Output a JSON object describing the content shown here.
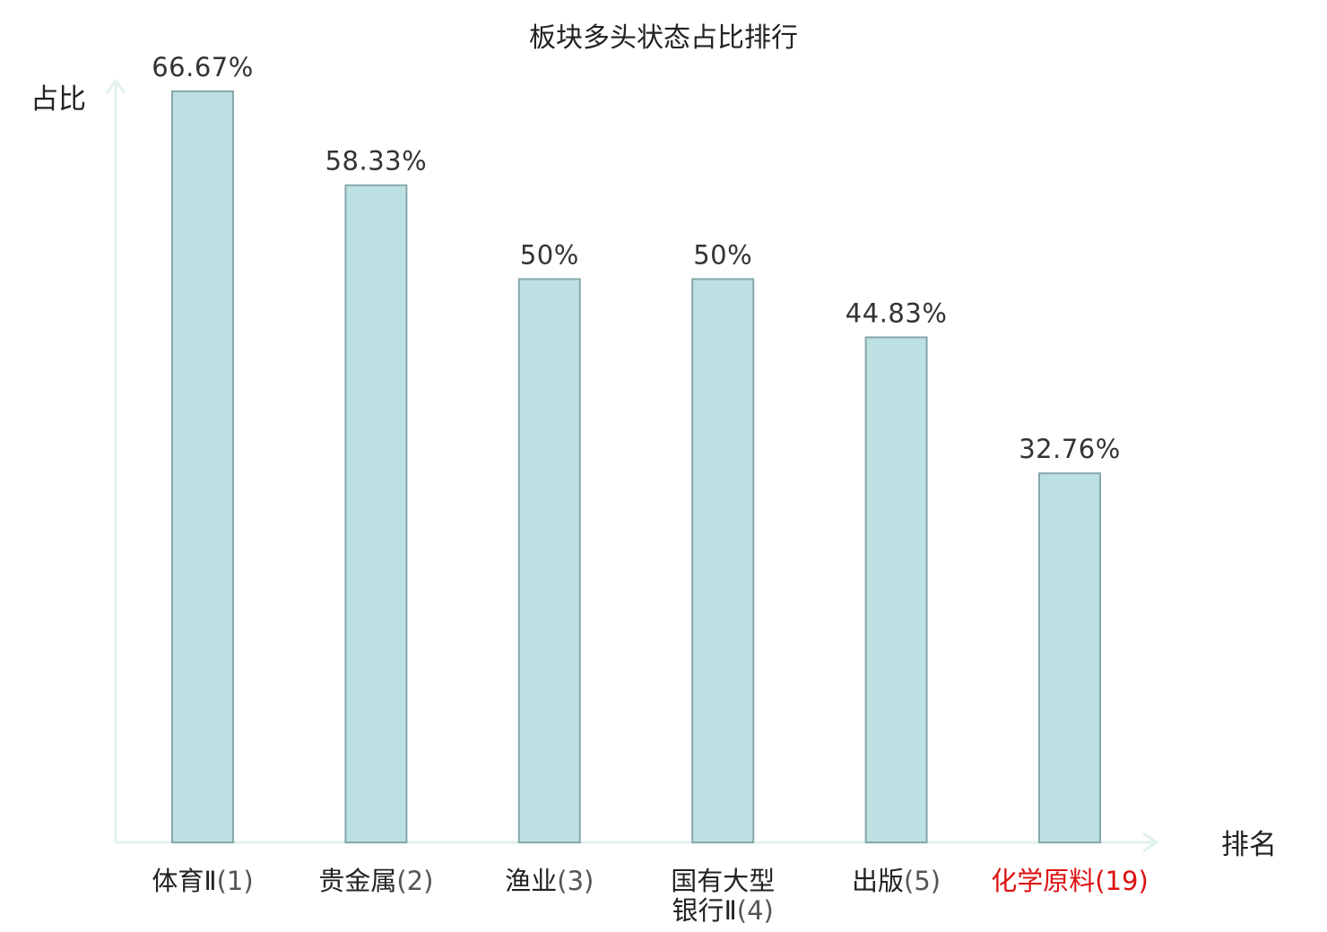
{
  "chart_data": {
    "type": "bar",
    "title": "板块多头状态占比排行",
    "ylabel": "占比",
    "xlabel": "排名",
    "ylim": [
      0,
      70
    ],
    "grid": false,
    "categories": [
      {
        "lines": [
          "体育Ⅱ"
        ],
        "rank": "(1)",
        "highlight": false
      },
      {
        "lines": [
          "贵金属"
        ],
        "rank": "(2)",
        "highlight": false
      },
      {
        "lines": [
          "渔业"
        ],
        "rank": "(3)",
        "highlight": false
      },
      {
        "lines": [
          "国有大型",
          "银行Ⅱ"
        ],
        "rank": "(4)",
        "highlight": false
      },
      {
        "lines": [
          "出版"
        ],
        "rank": "(5)",
        "highlight": false
      },
      {
        "lines": [
          "化学原料"
        ],
        "rank": "(19)",
        "highlight": true
      }
    ],
    "values": [
      66.67,
      58.33,
      50,
      50,
      44.83,
      32.76
    ],
    "value_labels": [
      "66.67%",
      "58.33%",
      "50%",
      "50%",
      "44.83%",
      "32.76%"
    ],
    "colors": {
      "bar_fill": "#bde0e2",
      "bar_stroke": "#86a8aa",
      "axis": "#e0f2ef",
      "highlight": "#dd1111"
    }
  }
}
